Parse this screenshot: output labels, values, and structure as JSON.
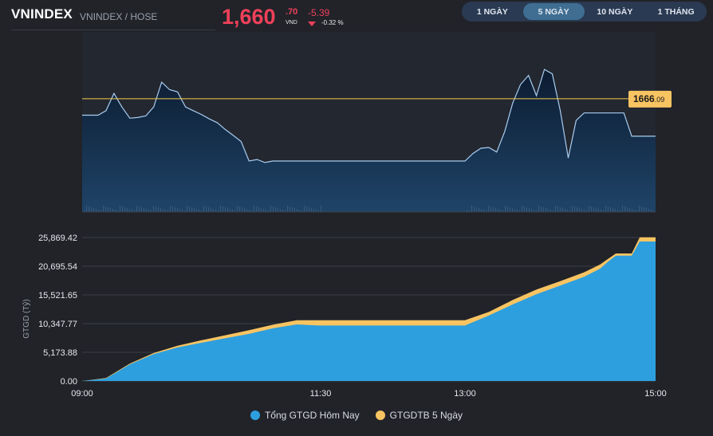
{
  "header": {
    "title": "VNINDEX",
    "subtitle": "VNINDEX / HOSE",
    "price_int": "1,660",
    "price_dec": ".70",
    "currency": "VND",
    "change": "-5.39",
    "change_pct": "-0.32 %"
  },
  "tabs": [
    {
      "label": "1 NGÀY",
      "active": false
    },
    {
      "label": "5 NGÀY",
      "active": true
    },
    {
      "label": "10 NGÀY",
      "active": false
    },
    {
      "label": "1 THÁNG",
      "active": false
    }
  ],
  "colors": {
    "down": "#f0405a",
    "price_line": "#a9cdf0",
    "ref_line": "#f7c948",
    "today_fill": "#2d9fde",
    "avg_fill": "#f8c462"
  },
  "chart_data": [
    {
      "type": "line",
      "reference_value": 1666.09,
      "reference_label_int": "1666",
      "reference_label_dec": ".09",
      "x_time_range": [
        "09:00",
        "15:00"
      ],
      "y_range": [
        1651,
        1675
      ],
      "series": [
        {
          "x": [
            "09:00",
            "09:10",
            "09:15",
            "09:20",
            "09:25",
            "09:30",
            "09:35",
            "09:40",
            "09:45",
            "09:50",
            "09:55",
            "10:00",
            "10:05",
            "10:10",
            "10:15",
            "10:20",
            "10:25",
            "10:30",
            "10:35",
            "10:40",
            "10:45",
            "10:50",
            "10:55",
            "11:00",
            "11:05",
            "11:10",
            "11:15",
            "11:20",
            "11:25",
            "11:29",
            "13:00",
            "13:05",
            "13:10",
            "13:15",
            "13:20",
            "13:25",
            "13:30",
            "13:35",
            "13:40",
            "13:45",
            "13:50",
            "13:55",
            "14:00",
            "14:05",
            "14:10",
            "14:15",
            "14:20",
            "14:25",
            "14:30",
            "14:35",
            "14:40",
            "14:45",
            "14:50",
            "14:55",
            "15:00"
          ],
          "values": [
            1663.9,
            1663.9,
            1664.5,
            1666.8,
            1665.0,
            1663.5,
            1663.6,
            1663.8,
            1665.0,
            1668.3,
            1667.3,
            1667.0,
            1665.0,
            1664.5,
            1664.0,
            1663.4,
            1662.9,
            1662.0,
            1661.2,
            1660.4,
            1657.8,
            1658.0,
            1657.6,
            1657.8,
            1657.8,
            1657.8,
            1657.8,
            1657.8,
            1657.8,
            1657.8,
            1657.8,
            1658.8,
            1659.5,
            1659.6,
            1659.0,
            1661.7,
            1665.5,
            1668.0,
            1669.2,
            1666.5,
            1670.0,
            1669.4,
            1664.5,
            1658.2,
            1663.2,
            1664.2,
            1664.2,
            1664.2,
            1664.2,
            1664.2,
            1664.2,
            1661.1,
            1661.1,
            1661.1,
            1661.1
          ]
        }
      ]
    },
    {
      "type": "area",
      "ylabel": "GTGD (Tỷ)",
      "yticks": [
        "25,869.42",
        "20,695.54",
        "15,521.65",
        "10,347.77",
        "5,173.88",
        "0.00"
      ],
      "xticks": [
        "09:00",
        "11:30",
        "13:00",
        "15:00"
      ],
      "ylim": [
        0,
        25869.42
      ],
      "x": [
        "09:00",
        "09:15",
        "09:30",
        "09:45",
        "10:00",
        "10:15",
        "10:30",
        "10:45",
        "11:00",
        "11:15",
        "11:29",
        "13:00",
        "13:15",
        "13:30",
        "13:45",
        "14:00",
        "14:15",
        "14:25",
        "14:30",
        "14:35",
        "14:40",
        "14:45",
        "14:50",
        "14:55",
        "15:00"
      ],
      "series": [
        {
          "name": "Tổng GTGD Hôm Nay",
          "values": [
            0,
            450,
            3000,
            4850,
            6050,
            6900,
            7700,
            8500,
            9500,
            10200,
            10000,
            10000,
            11800,
            13800,
            15650,
            17200,
            18800,
            20250,
            21500,
            22600,
            22600,
            22600,
            25150,
            25150,
            25150
          ]
        },
        {
          "name": "GTGDTB 5 Ngày",
          "values": [
            0,
            550,
            3150,
            5050,
            6350,
            7350,
            8250,
            9150,
            10150,
            10950,
            10950,
            10950,
            12450,
            14600,
            16500,
            18000,
            19600,
            21000,
            22000,
            23000,
            23000,
            23000,
            25900,
            25900,
            25900
          ]
        }
      ]
    }
  ]
}
